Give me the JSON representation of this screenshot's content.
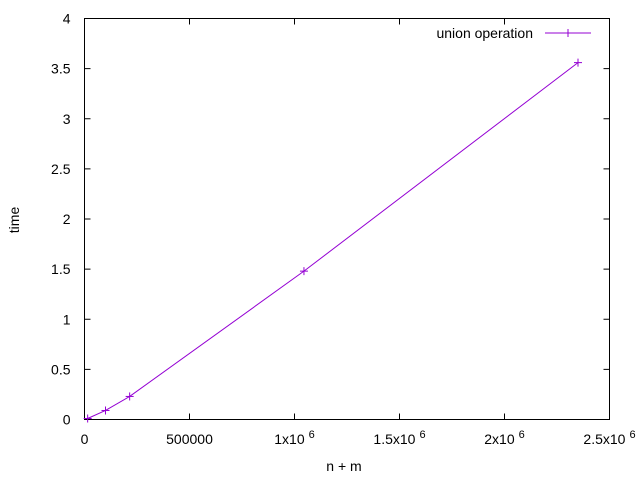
{
  "chart_data": {
    "type": "line",
    "title": "",
    "xlabel": "n + m",
    "ylabel": "time",
    "xlim": [
      0,
      2500000
    ],
    "ylim": [
      0,
      4
    ],
    "grid": false,
    "legend_position": "top-right",
    "x_ticks": [
      {
        "value": 0,
        "label": "0",
        "sup": ""
      },
      {
        "value": 500000,
        "label": "500000",
        "sup": ""
      },
      {
        "value": 1000000,
        "label": "1x10",
        "sup": "6"
      },
      {
        "value": 1500000,
        "label": "1.5x10",
        "sup": "6"
      },
      {
        "value": 2000000,
        "label": "2x10",
        "sup": "6"
      },
      {
        "value": 2500000,
        "label": "2.5x10",
        "sup": "6"
      }
    ],
    "y_ticks": [
      {
        "value": 0,
        "label": "0"
      },
      {
        "value": 0.5,
        "label": "0.5"
      },
      {
        "value": 1,
        "label": "1"
      },
      {
        "value": 1.5,
        "label": "1.5"
      },
      {
        "value": 2,
        "label": "2"
      },
      {
        "value": 2.5,
        "label": "2.5"
      },
      {
        "value": 3,
        "label": "3"
      },
      {
        "value": 3.5,
        "label": "3.5"
      },
      {
        "value": 4,
        "label": "4"
      }
    ],
    "series": [
      {
        "name": "union operation",
        "color": "#9400d3",
        "marker": "plus",
        "x": [
          15000,
          100000,
          215000,
          1045000,
          2350000
        ],
        "y": [
          0.01,
          0.09,
          0.23,
          1.48,
          3.56
        ]
      }
    ]
  }
}
